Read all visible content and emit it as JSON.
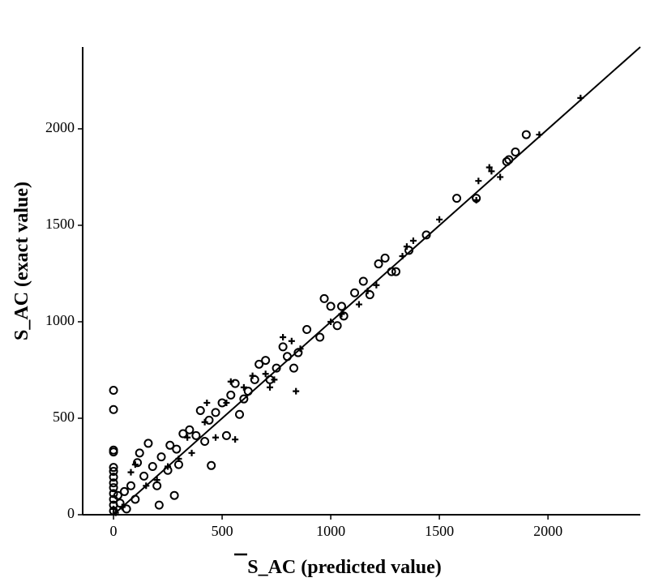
{
  "chart_data": {
    "type": "scatter",
    "xlabel": "S_AC (predicted value)",
    "ylabel": "S_AC (exact value)",
    "xlim": [
      -142,
      2425
    ],
    "ylim": [
      0,
      2424
    ],
    "xticks": [
      0,
      500,
      1000,
      1500,
      2000
    ],
    "yticks": [
      0,
      500,
      1000,
      1500,
      2000
    ],
    "grid": false,
    "color": "#000000",
    "series": [
      {
        "marker": "circle",
        "x": [
          0,
          0,
          0,
          0,
          0,
          0,
          0,
          0,
          0,
          0,
          0,
          0,
          0,
          20,
          30,
          50,
          60,
          80,
          100,
          110,
          120,
          140,
          160,
          180,
          200,
          210,
          220,
          250,
          260,
          280,
          290,
          300,
          320,
          350,
          380,
          400,
          420,
          440,
          450,
          470,
          500,
          520,
          540,
          560,
          580,
          600,
          620,
          650,
          670,
          700,
          720,
          750,
          780,
          800,
          830,
          850,
          890,
          950,
          970,
          1000,
          1030,
          1050,
          1060,
          1110,
          1150,
          1180,
          1220,
          1250,
          1280,
          1300,
          1360,
          1440,
          1580,
          1670,
          1810,
          1820,
          1850,
          1900
        ],
        "values": [
          645,
          545,
          335,
          325,
          245,
          225,
          195,
          165,
          140,
          110,
          80,
          50,
          20,
          100,
          60,
          120,
          30,
          150,
          80,
          270,
          320,
          200,
          370,
          250,
          150,
          50,
          300,
          230,
          360,
          100,
          340,
          260,
          420,
          440,
          410,
          540,
          380,
          490,
          255,
          530,
          580,
          410,
          620,
          680,
          520,
          600,
          640,
          700,
          780,
          800,
          700,
          760,
          870,
          820,
          760,
          840,
          960,
          920,
          1120,
          1080,
          980,
          1080,
          1030,
          1150,
          1210,
          1140,
          1300,
          1330,
          1260,
          1260,
          1370,
          1450,
          1640,
          1640,
          1830,
          1840,
          1880,
          1970
        ]
      },
      {
        "marker": "plus",
        "x": [
          0,
          10,
          40,
          80,
          100,
          150,
          200,
          250,
          300,
          340,
          360,
          420,
          430,
          470,
          520,
          540,
          560,
          600,
          640,
          700,
          720,
          740,
          780,
          820,
          840,
          860,
          1000,
          1050,
          1130,
          1170,
          1210,
          1330,
          1350,
          1380,
          1500,
          1670,
          1680,
          1730,
          1740,
          1780,
          1960,
          2150
        ],
        "values": [
          30,
          10,
          40,
          220,
          260,
          150,
          180,
          250,
          290,
          400,
          320,
          480,
          580,
          400,
          580,
          690,
          390,
          660,
          720,
          730,
          660,
          700,
          920,
          900,
          640,
          860,
          1000,
          1040,
          1090,
          1160,
          1190,
          1340,
          1390,
          1420,
          1530,
          1630,
          1730,
          1800,
          1780,
          1750,
          1970,
          2160
        ]
      }
    ],
    "fit_line": {
      "x": [
        0,
        2425
      ],
      "y": [
        0,
        2424
      ]
    }
  }
}
